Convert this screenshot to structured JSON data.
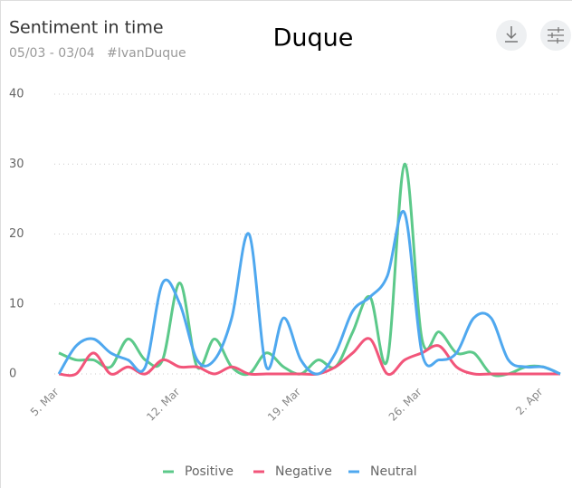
{
  "header": {
    "title": "Sentiment in time",
    "subtitle": "05/03 - 03/04   #IvanDuque"
  },
  "chart_data": {
    "type": "line",
    "title": "Duque",
    "categories": [
      "5. Mar",
      null,
      null,
      null,
      null,
      null,
      null,
      "12. Mar",
      null,
      null,
      null,
      null,
      null,
      null,
      "19. Mar",
      null,
      null,
      null,
      null,
      null,
      null,
      "26. Mar",
      null,
      null,
      null,
      null,
      null,
      null,
      "2. Apr",
      null
    ],
    "series": [
      {
        "name": "Positive",
        "color": "#5cc98a",
        "values": [
          3,
          2,
          2,
          1,
          5,
          2,
          2,
          13,
          1,
          5,
          1,
          0,
          3,
          1,
          0,
          2,
          1,
          6,
          11,
          2,
          30,
          5,
          6,
          3,
          3,
          0,
          0,
          1,
          1,
          0
        ]
      },
      {
        "name": "Negative",
        "color": "#f2557a",
        "values": [
          0,
          0,
          3,
          0,
          1,
          0,
          2,
          1,
          1,
          0,
          1,
          0,
          0,
          0,
          0,
          0,
          1,
          3,
          5,
          0,
          2,
          3,
          4,
          1,
          0,
          0,
          0,
          0,
          0,
          0
        ]
      },
      {
        "name": "Neutral",
        "color": "#4fa8ef",
        "values": [
          0,
          4,
          5,
          3,
          2,
          1,
          13,
          10,
          2,
          2,
          8,
          20,
          1,
          8,
          2,
          0,
          3,
          9,
          11,
          14,
          23,
          3,
          2,
          3,
          8,
          8,
          2,
          1,
          1,
          0
        ]
      }
    ],
    "ylim": [
      0,
      40
    ],
    "yticks": [
      0,
      10,
      20,
      30,
      40
    ],
    "grid": true,
    "legend": "bottom"
  }
}
